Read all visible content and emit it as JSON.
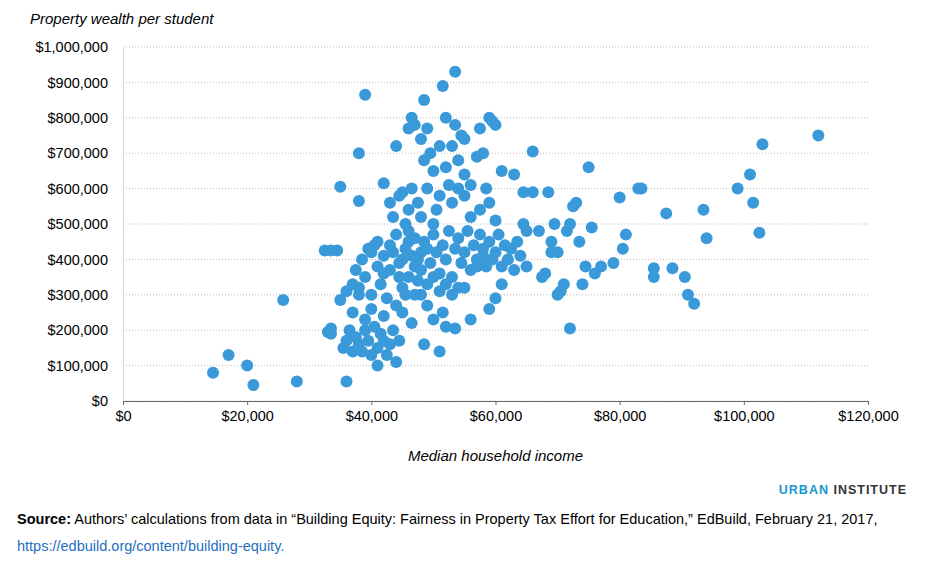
{
  "chart_data": {
    "type": "scatter",
    "title": "Property wealth per student",
    "x_label": "Median household income",
    "color": "#3a9ad9",
    "marker": "circle",
    "grid": true,
    "brand": [
      "URBAN",
      "INSTITUTE"
    ],
    "source": {
      "label": "Source:",
      "text": "Authors’ calculations from data in “Building Equity: Fairness in Property Tax Effort for Education,” EdBuild, February 21, 2017,",
      "link": "https://edbuild.org/content/building-equity."
    },
    "xlim": [
      0,
      120000
    ],
    "ylim": [
      0,
      1000000
    ],
    "xticks": [
      {
        "value": 0,
        "label": "$0"
      },
      {
        "value": 20000,
        "label": "$20,000"
      },
      {
        "value": 40000,
        "label": "$40,000"
      },
      {
        "value": 60000,
        "label": "$60,000"
      },
      {
        "value": 80000,
        "label": "$80,000"
      },
      {
        "value": 100000,
        "label": "$100,000"
      },
      {
        "value": 120000,
        "label": "$120,000"
      }
    ],
    "yticks": [
      {
        "value": 0,
        "label": "$0"
      },
      {
        "value": 100000,
        "label": "$100,000"
      },
      {
        "value": 200000,
        "label": "$200,000"
      },
      {
        "value": 300000,
        "label": "$300,000"
      },
      {
        "value": 400000,
        "label": "$400,000"
      },
      {
        "value": 500000,
        "label": "$500,000"
      },
      {
        "value": 600000,
        "label": "$600,000"
      },
      {
        "value": 700000,
        "label": "$700,000"
      },
      {
        "value": 800000,
        "label": "$800,000"
      },
      {
        "value": 900000,
        "label": "$900,000"
      },
      {
        "value": 1000000,
        "label": "$1,000,000"
      }
    ],
    "x": [
      14500,
      17000,
      20000,
      21000,
      28000,
      25800,
      36000,
      39000,
      32500,
      33500,
      34500,
      35000,
      38000,
      38000,
      33500,
      33500,
      33000,
      35000,
      35500,
      36000,
      36500,
      37000,
      37000,
      37500,
      38000,
      38000,
      38500,
      39000,
      39000,
      39500,
      40000,
      40000,
      40500,
      41000,
      41000,
      41500,
      42000,
      42000,
      42500,
      43000,
      43500,
      44000,
      44500,
      45000,
      36000,
      37000,
      37500,
      38000,
      38500,
      39000,
      39500,
      40000,
      40500,
      41000,
      41500,
      42000,
      42500,
      43000,
      43500,
      44000,
      44500,
      45000,
      45500,
      46000,
      46500,
      47000,
      47500,
      48000,
      48500,
      49000,
      50000,
      51000,
      51500,
      52000,
      53500,
      55000,
      56000,
      57000,
      58000,
      59000,
      60000,
      61000,
      42000,
      43000,
      43500,
      44000,
      44500,
      45000,
      45500,
      46000,
      46500,
      46500,
      47000,
      47500,
      48000,
      48500,
      48500,
      49000,
      49000,
      49500,
      50000,
      50500,
      51000,
      51500,
      52000,
      52000,
      52500,
      53000,
      53500,
      53500,
      54000,
      54500,
      55000,
      55000,
      56000,
      57000,
      57500,
      58000,
      58500,
      59000,
      59500,
      60000,
      61000,
      63000,
      66000,
      64500,
      56000,
      57500,
      59000,
      55000,
      50000,
      48000,
      51000,
      53000,
      54000,
      46000,
      60000,
      40000,
      41000,
      42000,
      43000,
      44000,
      44500,
      45500,
      46000,
      46500,
      47000,
      47500,
      48000,
      48500,
      49000,
      49500,
      50000,
      50500,
      51000,
      51500,
      52000,
      52500,
      53000,
      53500,
      54000,
      54500,
      55000,
      55500,
      56000,
      56500,
      57000,
      57500,
      58000,
      58500,
      59000,
      59500,
      60000,
      60500,
      61000,
      61500,
      62000,
      62500,
      63000,
      63500,
      64000,
      64500,
      65000,
      48000,
      49000,
      50000,
      51000,
      52000,
      53000,
      54000,
      45000,
      46000,
      47000,
      66000,
      67000,
      68000,
      68500,
      69000,
      69500,
      70000,
      70500,
      71000,
      71500,
      72000,
      72000,
      72500,
      73000,
      73500,
      74000,
      74500,
      75000,
      75500,
      76000,
      77000,
      79000,
      80000,
      80500,
      81000,
      83000,
      83500,
      85500,
      85500,
      87500,
      88500,
      90500,
      91000,
      92000,
      93500,
      94000,
      99000,
      101000,
      101500,
      102500,
      103000,
      112000,
      67500,
      69000,
      70000,
      65000
    ],
    "values": [
      80000,
      130000,
      100000,
      45000,
      55000,
      285000,
      55000,
      865000,
      425000,
      425000,
      425000,
      605000,
      700000,
      565000,
      205000,
      190000,
      195000,
      285000,
      150000,
      170000,
      200000,
      140000,
      250000,
      180000,
      160000,
      300000,
      140000,
      200000,
      230000,
      170000,
      130000,
      260000,
      210000,
      100000,
      150000,
      190000,
      240000,
      170000,
      130000,
      160000,
      200000,
      110000,
      170000,
      250000,
      310000,
      330000,
      370000,
      320000,
      400000,
      350000,
      430000,
      300000,
      440000,
      380000,
      330000,
      410000,
      290000,
      370000,
      420000,
      270000,
      350000,
      400000,
      300000,
      450000,
      220000,
      380000,
      340000,
      420000,
      160000,
      270000,
      230000,
      140000,
      250000,
      210000,
      205000,
      320000,
      230000,
      380000,
      410000,
      260000,
      290000,
      330000,
      615000,
      560000,
      520000,
      720000,
      580000,
      590000,
      500000,
      770000,
      800000,
      600000,
      780000,
      560000,
      740000,
      680000,
      850000,
      770000,
      600000,
      700000,
      650000,
      540000,
      720000,
      890000,
      800000,
      660000,
      610000,
      720000,
      930000,
      780000,
      680000,
      750000,
      740000,
      640000,
      610000,
      690000,
      770000,
      700000,
      600000,
      800000,
      790000,
      780000,
      650000,
      640000,
      705000,
      590000,
      520000,
      540000,
      560000,
      580000,
      500000,
      520000,
      580000,
      560000,
      600000,
      540000,
      510000,
      420000,
      450000,
      360000,
      440000,
      470000,
      390000,
      430000,
      480000,
      410000,
      460000,
      400000,
      370000,
      450000,
      430000,
      390000,
      470000,
      420000,
      360000,
      440000,
      400000,
      480000,
      350000,
      430000,
      460000,
      390000,
      420000,
      480000,
      370000,
      440000,
      400000,
      470000,
      430000,
      380000,
      450000,
      400000,
      420000,
      470000,
      380000,
      440000,
      400000,
      430000,
      370000,
      450000,
      410000,
      500000,
      380000,
      300000,
      330000,
      350000,
      310000,
      330000,
      300000,
      320000,
      320000,
      350000,
      300000,
      590000,
      480000,
      360000,
      590000,
      450000,
      500000,
      420000,
      310000,
      330000,
      480000,
      205000,
      500000,
      550000,
      560000,
      450000,
      330000,
      380000,
      660000,
      490000,
      360000,
      380000,
      390000,
      575000,
      430000,
      470000,
      600000,
      600000,
      350000,
      375000,
      530000,
      375000,
      350000,
      300000,
      275000,
      540000,
      460000,
      600000,
      640000,
      560000,
      475000,
      725000,
      750000,
      350000,
      420000,
      300000,
      480000
    ]
  }
}
